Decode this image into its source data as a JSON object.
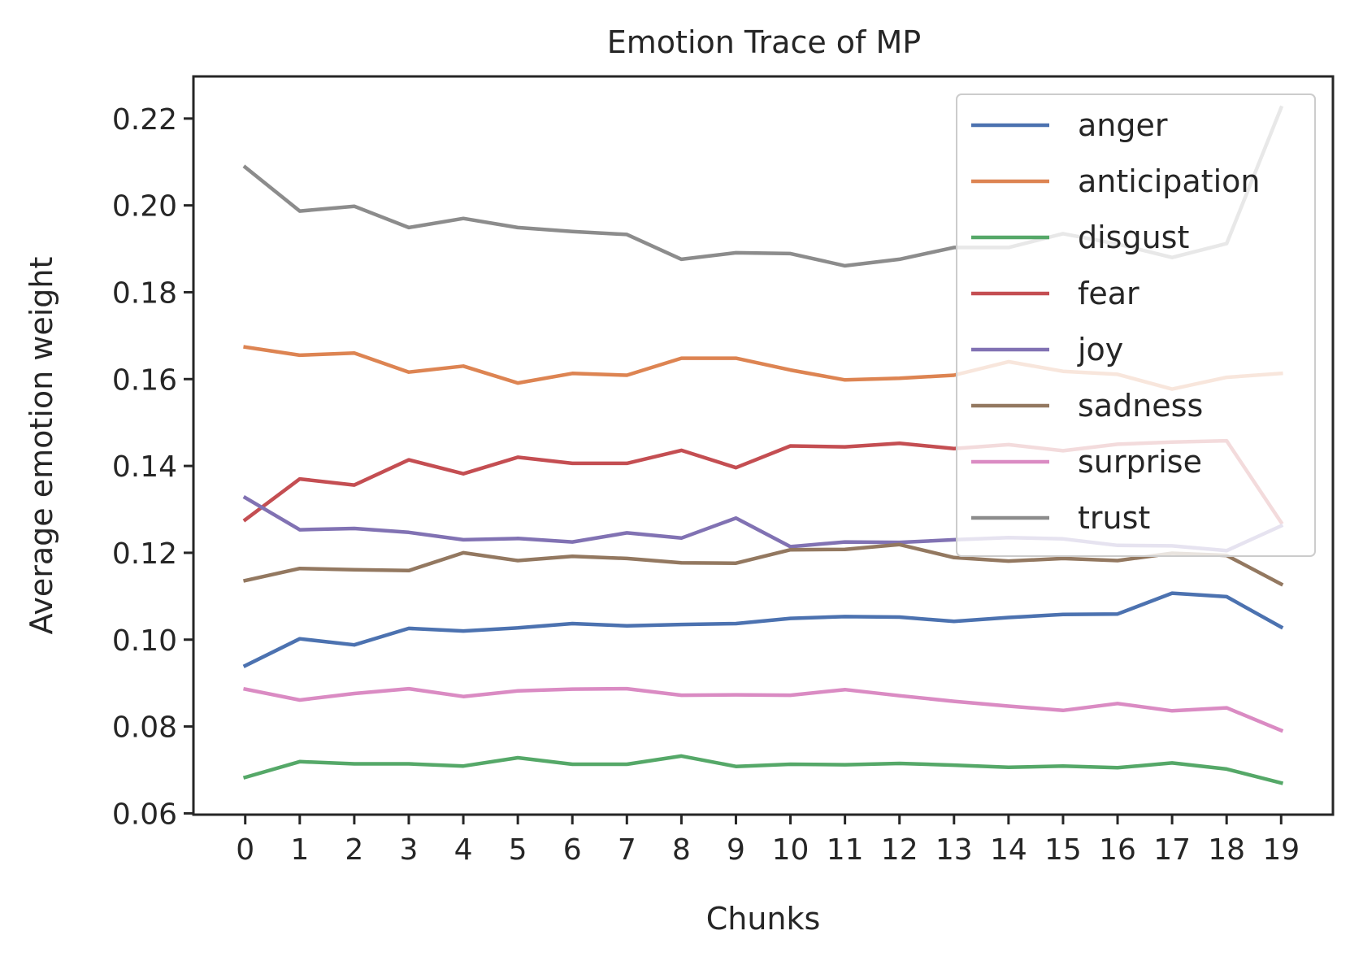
{
  "chart_data": {
    "type": "line",
    "title": "Emotion Trace of MP",
    "xlabel": "Chunks",
    "ylabel": "Average emotion weight",
    "x": [
      0,
      1,
      2,
      3,
      4,
      5,
      6,
      7,
      8,
      9,
      10,
      11,
      12,
      13,
      14,
      15,
      16,
      17,
      18,
      19
    ],
    "x_tick_labels": [
      "0",
      "1",
      "2",
      "3",
      "4",
      "5",
      "6",
      "7",
      "8",
      "9",
      "10",
      "11",
      "12",
      "13",
      "14",
      "15",
      "16",
      "17",
      "18",
      "19"
    ],
    "y_ticks": [
      0.06,
      0.08,
      0.1,
      0.12,
      0.14,
      0.16,
      0.18,
      0.2,
      0.22
    ],
    "y_tick_labels": [
      "0.06",
      "0.08",
      "0.10",
      "0.12",
      "0.14",
      "0.16",
      "0.18",
      "0.20",
      "0.22"
    ],
    "xlim": [
      -0.95,
      19.95
    ],
    "ylim": [
      0.0597,
      0.2297
    ],
    "grid": false,
    "legend_position": "top-right",
    "series": [
      {
        "name": "anger",
        "color": "#4c72b0",
        "values": [
          0.094,
          0.1002,
          0.0988,
          0.1026,
          0.102,
          0.1027,
          0.1037,
          0.1032,
          0.1035,
          0.1037,
          0.1049,
          0.1053,
          0.1052,
          0.1042,
          0.1051,
          0.1058,
          0.1059,
          0.1107,
          0.1099,
          0.1029
        ]
      },
      {
        "name": "anticipation",
        "color": "#dd8452",
        "values": [
          0.1674,
          0.1655,
          0.166,
          0.1616,
          0.163,
          0.1591,
          0.1613,
          0.1609,
          0.1648,
          0.1648,
          0.1621,
          0.1598,
          0.1602,
          0.1609,
          0.164,
          0.1618,
          0.1611,
          0.1577,
          0.1604,
          0.1613
        ]
      },
      {
        "name": "disgust",
        "color": "#55a868",
        "values": [
          0.0683,
          0.0719,
          0.0714,
          0.0714,
          0.0709,
          0.0728,
          0.0713,
          0.0713,
          0.0732,
          0.0708,
          0.0713,
          0.0712,
          0.0715,
          0.0711,
          0.0706,
          0.0709,
          0.0705,
          0.0716,
          0.0702,
          0.067
        ]
      },
      {
        "name": "fear",
        "color": "#c44e52",
        "values": [
          0.1276,
          0.137,
          0.1356,
          0.1414,
          0.1382,
          0.142,
          0.1406,
          0.1406,
          0.1436,
          0.1396,
          0.1446,
          0.1444,
          0.1452,
          0.144,
          0.1449,
          0.1435,
          0.145,
          0.1455,
          0.1458,
          0.127
        ]
      },
      {
        "name": "joy",
        "color": "#8172b3",
        "values": [
          0.1327,
          0.1253,
          0.1256,
          0.1247,
          0.123,
          0.1233,
          0.1225,
          0.1246,
          0.1234,
          0.128,
          0.1214,
          0.1225,
          0.1224,
          0.123,
          0.1235,
          0.1232,
          0.1217,
          0.1216,
          0.1205,
          0.1262
        ]
      },
      {
        "name": "sadness",
        "color": "#937860",
        "values": [
          0.1136,
          0.1164,
          0.1161,
          0.1159,
          0.12,
          0.1182,
          0.1192,
          0.1187,
          0.1177,
          0.1176,
          0.1207,
          0.1208,
          0.1219,
          0.1189,
          0.1181,
          0.1187,
          0.1182,
          0.1199,
          0.1194,
          0.1128
        ]
      },
      {
        "name": "surprise",
        "color": "#da8bc3",
        "values": [
          0.0886,
          0.0861,
          0.0876,
          0.0887,
          0.0869,
          0.0882,
          0.0886,
          0.0887,
          0.0872,
          0.0873,
          0.0872,
          0.0885,
          0.0871,
          0.0858,
          0.0847,
          0.0837,
          0.0853,
          0.0836,
          0.0843,
          0.0791
        ]
      },
      {
        "name": "trust",
        "color": "#8c8c8c",
        "values": [
          0.2088,
          0.1987,
          0.1998,
          0.1949,
          0.197,
          0.1949,
          0.194,
          0.1933,
          0.1876,
          0.1891,
          0.1889,
          0.1861,
          0.1876,
          0.1903,
          0.1903,
          0.1935,
          0.1911,
          0.188,
          0.1912,
          0.2225
        ]
      }
    ]
  }
}
